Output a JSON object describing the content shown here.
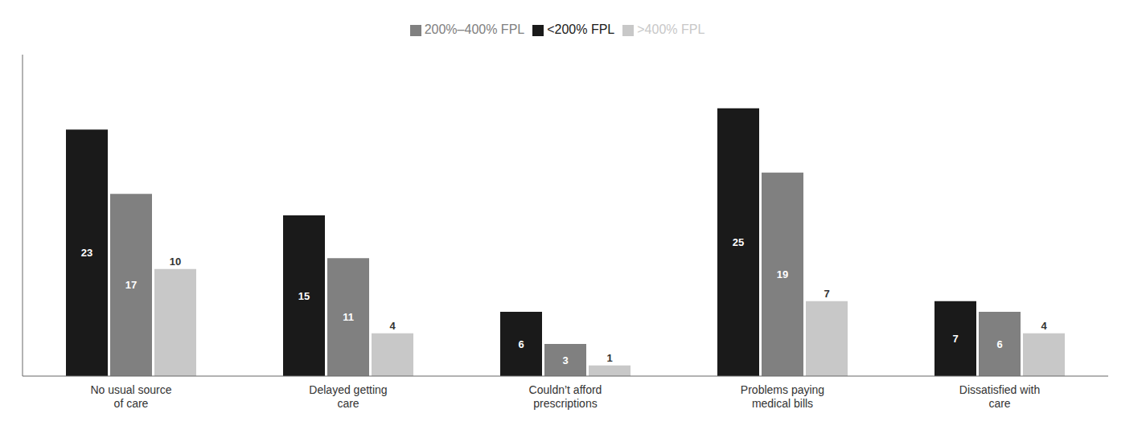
{
  "chart_data": {
    "type": "bar",
    "categories": [
      "No usual source\nof care",
      "Delayed getting\ncare",
      "Couldn’t afford\nprescriptions",
      "Problems paying\nmedical bills",
      "Dissatisfied with\ncare"
    ],
    "series": [
      {
        "name": "<200% FPL",
        "color": "#1a1a1a",
        "values": [
          23,
          15,
          6,
          25,
          7
        ]
      },
      {
        "name": "200%–400% FPL",
        "color": "#808080",
        "values": [
          17,
          11,
          3,
          19,
          6
        ]
      },
      {
        "name": ">400% FPL",
        "color": "#c8c8c8",
        "values": [
          10,
          4,
          1,
          7,
          4
        ]
      }
    ],
    "ylim": [
      0,
      30
    ],
    "grid": false,
    "legend": "top",
    "data_labels": true,
    "tick_labels": "x"
  }
}
